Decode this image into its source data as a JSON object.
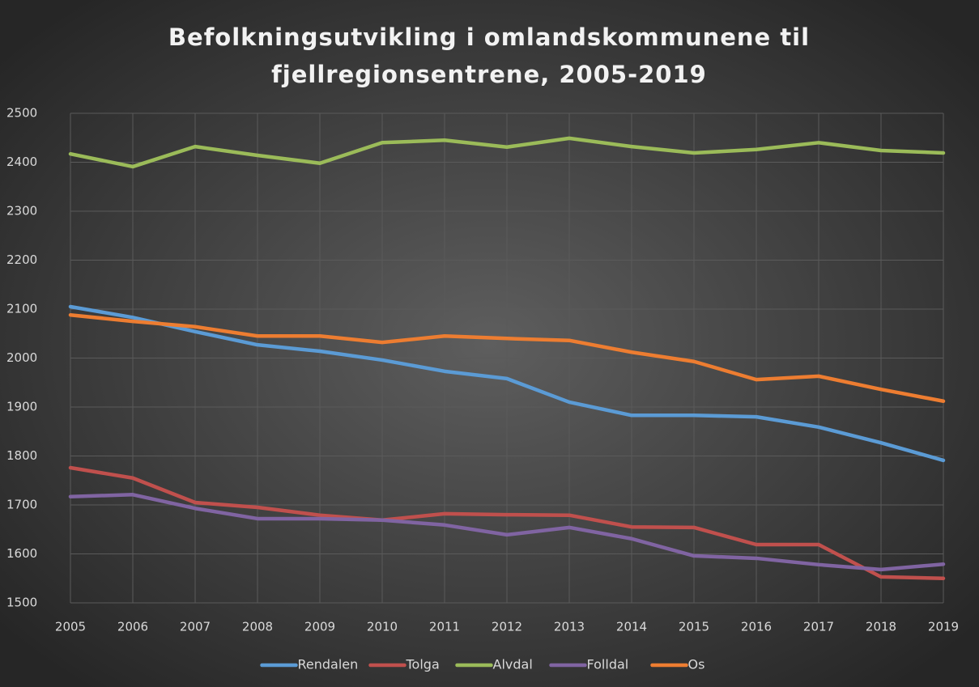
{
  "chart_data": {
    "type": "line",
    "title": [
      "Befolkningsutvikling  i omlandskommunene til",
      "fjellregionsentrene,  2005-2019"
    ],
    "x": [
      2005,
      2006,
      2007,
      2008,
      2009,
      2010,
      2011,
      2012,
      2013,
      2014,
      2015,
      2016,
      2017,
      2018,
      2019
    ],
    "xlim": [
      2005,
      2019
    ],
    "xticks": [
      2005,
      2006,
      2007,
      2008,
      2009,
      2010,
      2011,
      2012,
      2013,
      2014,
      2015,
      2016,
      2017,
      2018,
      2019
    ],
    "ylim": [
      1500,
      2500
    ],
    "yticks": [
      1500,
      1600,
      1700,
      1800,
      1900,
      2000,
      2100,
      2200,
      2300,
      2400,
      2500
    ],
    "grid": true,
    "legend": "bottom",
    "series": [
      {
        "name": "Rendalen",
        "color": "#5b9bd5",
        "values": [
          2105,
          2083,
          2054,
          2027,
          2014,
          1996,
          1973,
          1958,
          1910,
          1883,
          1883,
          1880,
          1859,
          1827,
          1791
        ]
      },
      {
        "name": "Tolga",
        "color": "#c0504d",
        "values": [
          1776,
          1755,
          1705,
          1695,
          1679,
          1669,
          1682,
          1680,
          1679,
          1655,
          1654,
          1619,
          1619,
          1553,
          1550
        ]
      },
      {
        "name": "Alvdal",
        "color": "#9bbb59",
        "values": [
          2417,
          2391,
          2432,
          2414,
          2398,
          2440,
          2445,
          2431,
          2449,
          2432,
          2419,
          2426,
          2440,
          2424,
          2419
        ]
      },
      {
        "name": "Folldal",
        "color": "#8064a2",
        "values": [
          1717,
          1721,
          1693,
          1672,
          1672,
          1669,
          1659,
          1639,
          1654,
          1631,
          1596,
          1591,
          1578,
          1568,
          1579
        ]
      },
      {
        "name": "Os",
        "color": "#ed7d31",
        "values": [
          2088,
          2075,
          2064,
          2045,
          2045,
          2032,
          2045,
          2040,
          2036,
          2012,
          1993,
          1956,
          1963,
          1936,
          1912
        ]
      }
    ]
  }
}
